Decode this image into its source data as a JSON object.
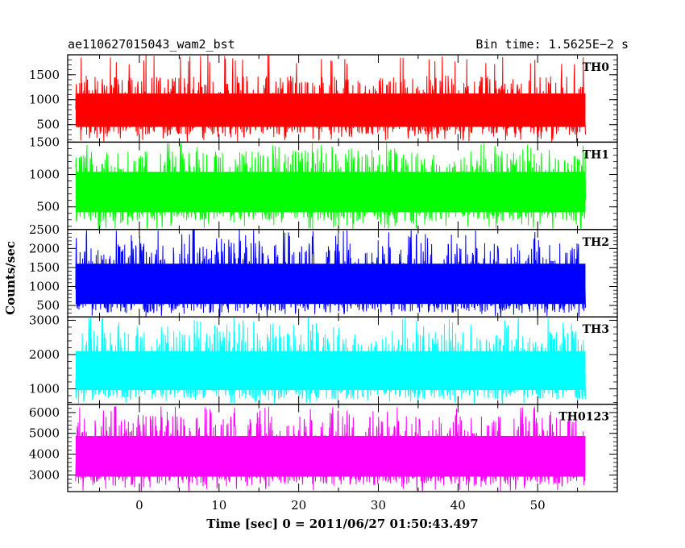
{
  "header": {
    "left_title": "ae110627015043_wam2_bst",
    "right_title": "Bin time: 1.5625E−2 s"
  },
  "chart_data": {
    "type": "line",
    "xlabel": "Time [sec] 0 = 2011/06/27 01:50:43.497",
    "ylabel": "Counts/sec",
    "xlim": [
      -9,
      60
    ],
    "x_ticks": [
      0,
      10,
      20,
      30,
      40,
      50
    ],
    "x_range_data": [
      -8,
      56
    ],
    "bin_time": 0.015625,
    "panels": [
      {
        "name": "TH0",
        "color": "#ff0000",
        "ylim": [
          150,
          1900
        ],
        "y_ticks": [
          500,
          1000,
          1500
        ],
        "baseline": 800,
        "low": 300,
        "high": 1600,
        "peak": 1900
      },
      {
        "name": "TH1",
        "color": "#00ff00",
        "ylim": [
          150,
          1500
        ],
        "y_ticks": [
          500,
          1000,
          1500
        ],
        "baseline": 750,
        "low": 280,
        "high": 1450,
        "peak": 1500
      },
      {
        "name": "TH2",
        "color": "#0000ff",
        "ylim": [
          200,
          2500
        ],
        "y_ticks": [
          500,
          1000,
          1500,
          2000,
          2500
        ],
        "baseline": 1100,
        "low": 300,
        "high": 2300,
        "peak": 2500
      },
      {
        "name": "TH3",
        "color": "#00ffff",
        "ylim": [
          550,
          3100
        ],
        "y_ticks": [
          1000,
          2000,
          3000
        ],
        "baseline": 1550,
        "low": 700,
        "high": 2900,
        "peak": 3100
      },
      {
        "name": "TH0123",
        "color": "#ff00ff",
        "ylim": [
          2200,
          6400
        ],
        "y_ticks": [
          3000,
          4000,
          5000,
          6000
        ],
        "baseline": 4000,
        "low": 2500,
        "high": 6000,
        "peak": 6300
      }
    ]
  }
}
